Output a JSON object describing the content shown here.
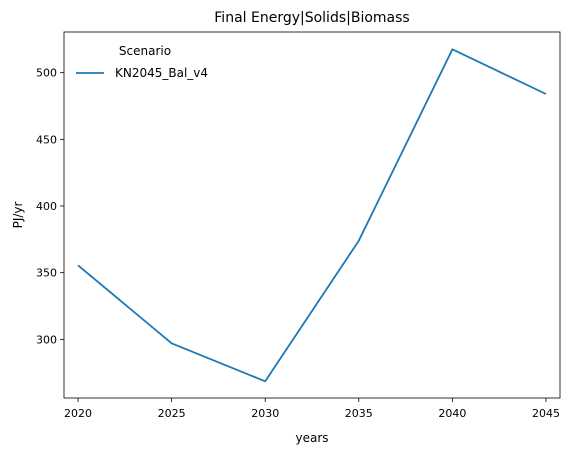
{
  "chart_data": {
    "type": "line",
    "title": "Final Energy|Solids|Biomass",
    "xlabel": "years",
    "ylabel": "PJ/yr",
    "x": [
      2020,
      2025,
      2030,
      2035,
      2040,
      2045
    ],
    "series": [
      {
        "name": "KN2045_Bal_v4",
        "color": "#1f77b4",
        "values": [
          355.5,
          297.0,
          268.5,
          374.0,
          517.5,
          484.0
        ]
      }
    ],
    "xticks": [
      "2020",
      "2025",
      "2030",
      "2035",
      "2040",
      "2045"
    ],
    "yticks": [
      "300",
      "350",
      "400",
      "450",
      "500"
    ],
    "xlim": [
      2019.25,
      2045.75
    ],
    "ylim": [
      256.0,
      530.5
    ],
    "grid": false,
    "legend": {
      "title": "Scenario",
      "placement": "top-left"
    }
  }
}
